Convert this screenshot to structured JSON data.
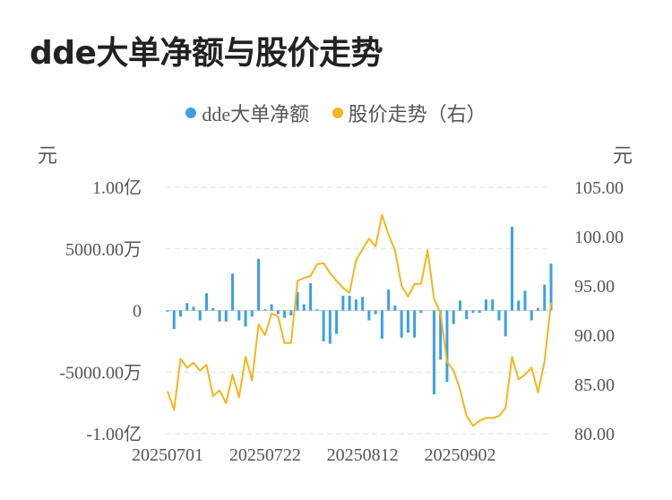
{
  "title": "dde大单净额与股价走势",
  "colors": {
    "bar": "#3ba0e6",
    "line": "#f5b51d",
    "grid": "#e0e0e0"
  },
  "chart_data": {
    "type": "bar",
    "legend": [
      "dde大单净额",
      "股价走势（右）"
    ],
    "left_unit": "元",
    "right_unit": "元",
    "y_left_ticks": [
      {
        "value": 10000,
        "label": "1.00亿"
      },
      {
        "value": 5000,
        "label": "5000.00万"
      },
      {
        "value": 0,
        "label": "0"
      },
      {
        "value": -5000,
        "label": "-5000.00万"
      },
      {
        "value": -10000,
        "label": "-1.00亿"
      }
    ],
    "y_left_range": [
      -10000,
      10000
    ],
    "y_right_ticks": [
      "105.00",
      "100.00",
      "95.00",
      "90.00",
      "85.00",
      "80.00"
    ],
    "y_right_range": [
      80,
      105
    ],
    "x_tick_labels": [
      {
        "index": 0,
        "label": "20250701"
      },
      {
        "index": 15,
        "label": "20250722"
      },
      {
        "index": 30,
        "label": "20250812"
      },
      {
        "index": 45,
        "label": "20250902"
      }
    ],
    "series": [
      {
        "name": "dde大单净额",
        "type": "bar",
        "axis": "left",
        "values": [
          -100,
          -1500,
          -500,
          600,
          300,
          -800,
          1400,
          200,
          -900,
          -900,
          3000,
          -800,
          -1300,
          -500,
          4200,
          100,
          500,
          -300,
          -600,
          -400,
          1500,
          500,
          2200,
          100,
          -2500,
          -2700,
          -1900,
          1200,
          1200,
          900,
          1100,
          -800,
          -300,
          -2300,
          1700,
          400,
          -2200,
          -1800,
          -2200,
          -200,
          0,
          -6800,
          -4000,
          -5800,
          -1100,
          800,
          -700,
          -200,
          -200,
          900,
          900,
          -800,
          -2100,
          6800,
          800,
          1600,
          -800,
          200,
          2100,
          3800
        ]
      },
      {
        "name": "股价走势（右）",
        "type": "line",
        "axis": "right",
        "values": [
          84.3,
          82.4,
          87.6,
          86.7,
          87.2,
          86.4,
          87.0,
          83.8,
          84.4,
          83.1,
          86.0,
          83.7,
          87.8,
          85.4,
          91.1,
          90.0,
          92.2,
          91.9,
          89.2,
          89.2,
          95.5,
          95.8,
          96.0,
          97.2,
          97.3,
          96.3,
          95.5,
          94.8,
          94.3,
          97.6,
          98.7,
          99.8,
          99.0,
          102.2,
          100.2,
          98.6,
          95.0,
          93.9,
          95.2,
          95.2,
          98.6,
          93.7,
          92.2,
          87.3,
          86.4,
          84.5,
          81.8,
          80.8,
          81.3,
          81.6,
          81.6,
          81.8,
          82.6,
          87.8,
          85.5,
          86.0,
          86.7,
          84.2,
          87.3,
          93.3
        ]
      }
    ]
  }
}
